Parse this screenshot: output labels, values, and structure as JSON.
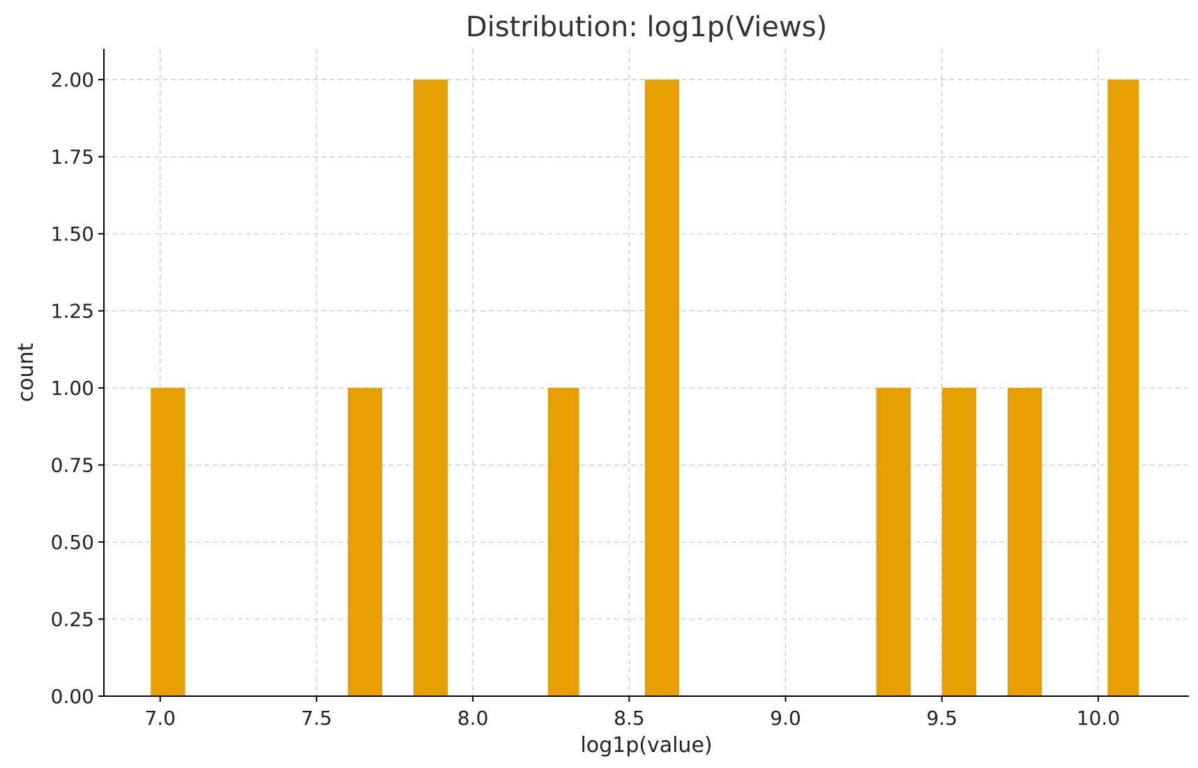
{
  "chart_data": {
    "type": "bar",
    "title": "Distribution: log1p(Views)",
    "xlabel": "log1p(value)",
    "ylabel": "count",
    "xlim": [
      6.82,
      10.29
    ],
    "ylim": [
      0,
      2.1
    ],
    "x_ticks": [
      "7.0",
      "7.5",
      "8.0",
      "8.5",
      "9.0",
      "9.5",
      "10.0"
    ],
    "y_ticks": [
      "0.00",
      "0.25",
      "0.50",
      "0.75",
      "1.00",
      "1.25",
      "1.50",
      "1.75",
      "2.00"
    ],
    "grid": true,
    "bar_color": "#E69F00",
    "bins": [
      {
        "x0": 6.97,
        "x1": 7.08,
        "count": 1
      },
      {
        "x0": 7.6,
        "x1": 7.71,
        "count": 1
      },
      {
        "x0": 7.81,
        "x1": 7.92,
        "count": 2
      },
      {
        "x0": 8.24,
        "x1": 8.34,
        "count": 1
      },
      {
        "x0": 8.55,
        "x1": 8.66,
        "count": 2
      },
      {
        "x0": 9.29,
        "x1": 9.4,
        "count": 1
      },
      {
        "x0": 9.5,
        "x1": 9.61,
        "count": 1
      },
      {
        "x0": 9.71,
        "x1": 9.82,
        "count": 1
      },
      {
        "x0": 10.03,
        "x1": 10.13,
        "count": 2
      }
    ]
  }
}
